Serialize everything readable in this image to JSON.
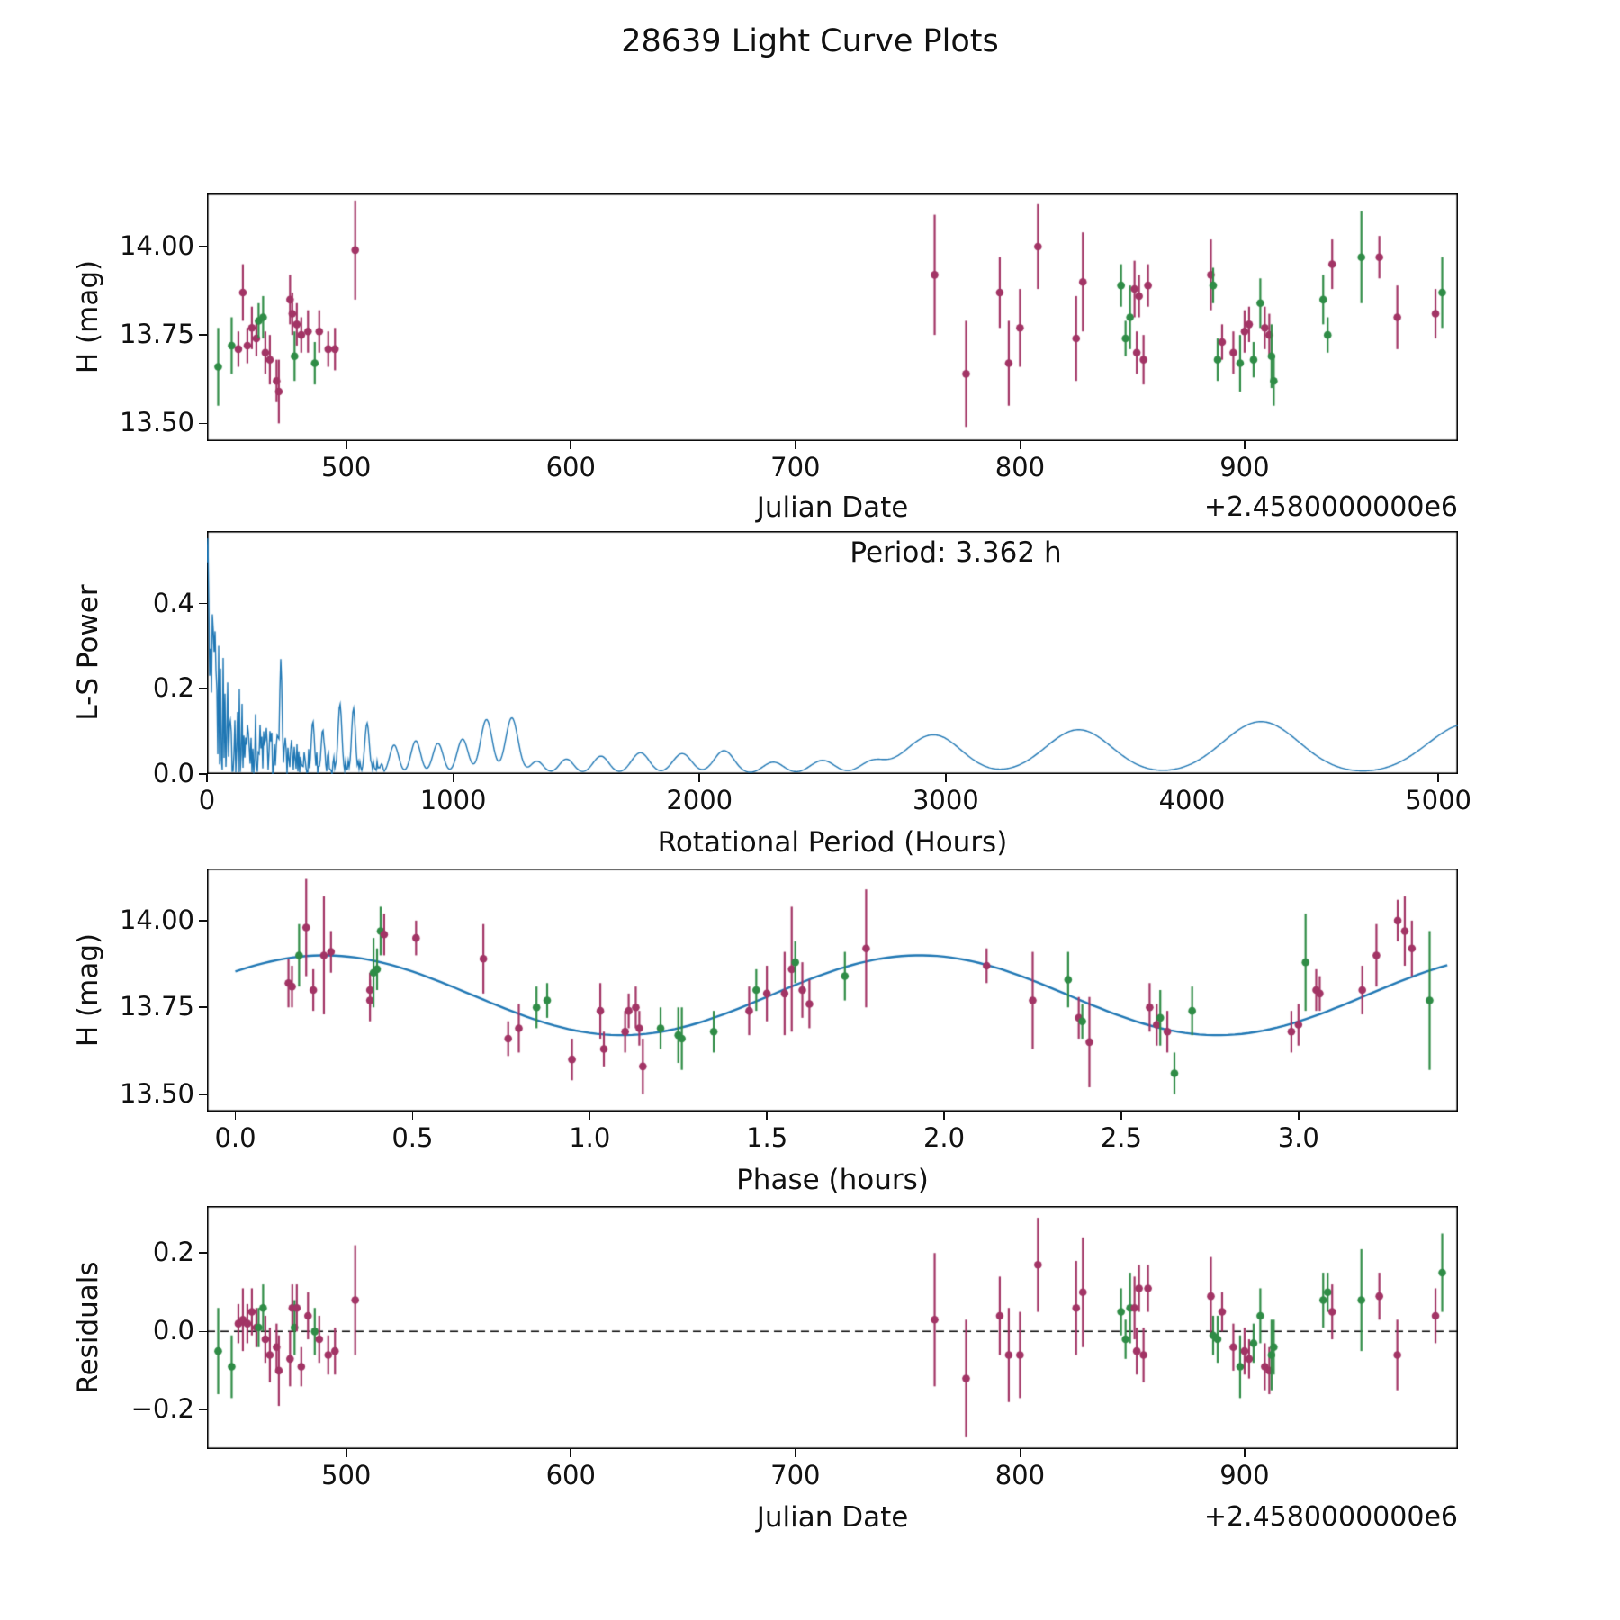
{
  "title": "28639 Light Curve Plots",
  "colors": {
    "series_a": "#a23465",
    "series_b": "#2f8c46",
    "fit_line": "#1f77b4",
    "axes": "#000000"
  },
  "chart_data": [
    {
      "id": "lightcurve",
      "type": "scatter",
      "xlabel": "Julian Date",
      "ylabel": "H (mag)",
      "x_offset_text": "+2.4580000000e6",
      "xlim": [
        438,
        995
      ],
      "ylim": [
        13.45,
        14.15
      ],
      "xtick_vals": [
        500,
        600,
        700,
        800,
        900
      ],
      "xtick_labels": [
        "500",
        "600",
        "700",
        "800",
        "900"
      ],
      "ytick_vals": [
        13.5,
        13.75,
        14.0
      ],
      "ytick_labels": [
        "13.50",
        "13.75",
        "14.00"
      ],
      "points": [
        [
          443,
          13.66,
          0.11,
          "b",
          -0.05
        ],
        [
          449,
          13.72,
          0.08,
          "b",
          -0.09
        ],
        [
          452,
          13.71,
          0.05,
          "a",
          0.02
        ],
        [
          454,
          13.87,
          0.08,
          "a",
          0.03
        ],
        [
          456,
          13.72,
          0.05,
          "a",
          0.02
        ],
        [
          458,
          13.77,
          0.06,
          "a",
          0.05
        ],
        [
          460,
          13.74,
          0.05,
          "a",
          0.01
        ],
        [
          461,
          13.79,
          0.05,
          "b",
          0.01
        ],
        [
          463,
          13.8,
          0.06,
          "b",
          0.06
        ],
        [
          464,
          13.7,
          0.06,
          "a",
          -0.02
        ],
        [
          466,
          13.68,
          0.07,
          "a",
          -0.06
        ],
        [
          469,
          13.62,
          0.06,
          "a",
          -0.04
        ],
        [
          470,
          13.59,
          0.09,
          "a",
          -0.1
        ],
        [
          475,
          13.85,
          0.07,
          "a",
          -0.07
        ],
        [
          476,
          13.81,
          0.06,
          "a",
          0.06
        ],
        [
          477,
          13.69,
          0.07,
          "b",
          0.01
        ],
        [
          478,
          13.78,
          0.06,
          "a",
          0.06
        ],
        [
          480,
          13.75,
          0.05,
          "a",
          -0.09
        ],
        [
          483,
          13.76,
          0.06,
          "a",
          0.04
        ],
        [
          486,
          13.67,
          0.06,
          "b",
          0.0
        ],
        [
          488,
          13.76,
          0.06,
          "a",
          -0.02
        ],
        [
          492,
          13.71,
          0.05,
          "a",
          -0.06
        ],
        [
          495,
          13.71,
          0.06,
          "a",
          -0.05
        ],
        [
          504,
          13.99,
          0.14,
          "a",
          0.08
        ],
        [
          762,
          13.92,
          0.17,
          "a",
          0.03
        ],
        [
          776,
          13.64,
          0.15,
          "a",
          -0.12
        ],
        [
          791,
          13.87,
          0.1,
          "a",
          0.04
        ],
        [
          795,
          13.67,
          0.12,
          "a",
          -0.06
        ],
        [
          800,
          13.77,
          0.11,
          "a",
          -0.06
        ],
        [
          808,
          14.0,
          0.12,
          "a",
          0.17
        ],
        [
          825,
          13.74,
          0.12,
          "a",
          0.06
        ],
        [
          828,
          13.9,
          0.14,
          "a",
          0.1
        ],
        [
          845,
          13.89,
          0.06,
          "b",
          0.05
        ],
        [
          847,
          13.74,
          0.05,
          "b",
          -0.02
        ],
        [
          849,
          13.8,
          0.09,
          "b",
          0.06
        ],
        [
          851,
          13.88,
          0.08,
          "a",
          0.06
        ],
        [
          852,
          13.7,
          0.06,
          "a",
          -0.05
        ],
        [
          853,
          13.86,
          0.06,
          "a",
          0.11
        ],
        [
          855,
          13.68,
          0.07,
          "a",
          -0.06
        ],
        [
          857,
          13.89,
          0.06,
          "a",
          0.11
        ],
        [
          885,
          13.92,
          0.1,
          "a",
          0.09
        ],
        [
          886,
          13.89,
          0.05,
          "b",
          -0.01
        ],
        [
          888,
          13.68,
          0.06,
          "b",
          -0.02
        ],
        [
          890,
          13.73,
          0.05,
          "a",
          0.05
        ],
        [
          895,
          13.7,
          0.06,
          "a",
          -0.04
        ],
        [
          898,
          13.67,
          0.08,
          "b",
          -0.09
        ],
        [
          900,
          13.76,
          0.06,
          "a",
          -0.05
        ],
        [
          902,
          13.78,
          0.05,
          "a",
          -0.07
        ],
        [
          904,
          13.68,
          0.05,
          "b",
          -0.03
        ],
        [
          907,
          13.84,
          0.07,
          "b",
          0.04
        ],
        [
          909,
          13.77,
          0.06,
          "a",
          -0.09
        ],
        [
          911,
          13.75,
          0.06,
          "a",
          -0.1
        ],
        [
          912,
          13.69,
          0.09,
          "b",
          -0.06
        ],
        [
          913,
          13.62,
          0.07,
          "b",
          -0.04
        ],
        [
          935,
          13.85,
          0.07,
          "b",
          0.08
        ],
        [
          937,
          13.75,
          0.05,
          "b",
          0.1
        ],
        [
          939,
          13.95,
          0.07,
          "a",
          0.05
        ],
        [
          952,
          13.97,
          0.13,
          "b",
          0.08
        ],
        [
          960,
          13.97,
          0.06,
          "a",
          0.09
        ],
        [
          968,
          13.8,
          0.09,
          "a",
          -0.06
        ],
        [
          985,
          13.81,
          0.07,
          "a",
          0.04
        ],
        [
          988,
          13.87,
          0.1,
          "b",
          0.15
        ]
      ]
    },
    {
      "id": "periodogram",
      "type": "line",
      "xlabel": "Rotational Period (Hours)",
      "ylabel": "L-S Power",
      "annotation": "Period: 3.362 h",
      "best_period_hours": 3.362,
      "xlim": [
        0,
        5080
      ],
      "ylim": [
        0,
        0.57
      ],
      "xtick_vals": [
        0,
        1000,
        2000,
        3000,
        4000,
        5000
      ],
      "xtick_labels": [
        "0",
        "1000",
        "2000",
        "3000",
        "4000",
        "5000"
      ],
      "ytick_vals": [
        0.0,
        0.2,
        0.4
      ],
      "ytick_labels": [
        "0.0",
        "0.2",
        "0.4"
      ],
      "components": {
        "noise_envelope": [
          0.3,
          115,
          0.13,
          420,
          0.012
        ],
        "spikes": [
          [
            4,
            0.555,
            6
          ],
          [
            300,
            0.27,
            7
          ],
          [
            430,
            0.125,
            9
          ],
          [
            470,
            0.105,
            9
          ],
          [
            540,
            0.165,
            11
          ],
          [
            595,
            0.155,
            11
          ],
          [
            650,
            0.12,
            13
          ]
        ],
        "bumps": [
          [
            760,
            0.068,
            26
          ],
          [
            848,
            0.078,
            28
          ],
          [
            938,
            0.072,
            30
          ],
          [
            1038,
            0.082,
            32
          ],
          [
            1135,
            0.128,
            34
          ],
          [
            1238,
            0.132,
            36
          ],
          [
            1340,
            0.03,
            38
          ],
          [
            1460,
            0.035,
            42
          ],
          [
            1600,
            0.042,
            46
          ],
          [
            1760,
            0.05,
            52
          ],
          [
            1930,
            0.048,
            55
          ],
          [
            2100,
            0.055,
            58
          ],
          [
            2300,
            0.028,
            60
          ],
          [
            2500,
            0.032,
            70
          ],
          [
            2700,
            0.025,
            70
          ],
          [
            2950,
            0.092,
            160
          ],
          [
            3540,
            0.104,
            190
          ],
          [
            4280,
            0.123,
            220
          ],
          [
            5120,
            0.118,
            230
          ]
        ]
      }
    },
    {
      "id": "phase",
      "type": "scatter_with_fit",
      "xlabel": "Phase (hours)",
      "ylabel": "H (mag)",
      "xlim": [
        -0.08,
        3.45
      ],
      "ylim": [
        13.45,
        14.15
      ],
      "xtick_vals": [
        0.0,
        0.5,
        1.0,
        1.5,
        2.0,
        2.5,
        3.0
      ],
      "xtick_labels": [
        "0.0",
        "0.5",
        "1.0",
        "1.5",
        "2.0",
        "2.5",
        "3.0"
      ],
      "ytick_vals": [
        13.5,
        13.75,
        14.0
      ],
      "ytick_labels": [
        "13.50",
        "13.75",
        "14.00"
      ],
      "fit": {
        "mean": 13.785,
        "amplitude": 0.115,
        "period": 1.681,
        "phase_of_max": 0.25,
        "x_start": 0.0,
        "x_end": 3.42
      },
      "points": [
        [
          0.15,
          13.82,
          0.07,
          "a"
        ],
        [
          0.16,
          13.81,
          0.06,
          "a"
        ],
        [
          0.18,
          13.9,
          0.09,
          "b"
        ],
        [
          0.2,
          13.98,
          0.14,
          "a"
        ],
        [
          0.22,
          13.8,
          0.06,
          "a"
        ],
        [
          0.25,
          13.9,
          0.17,
          "a"
        ],
        [
          0.27,
          13.91,
          0.06,
          "a"
        ],
        [
          0.38,
          13.8,
          0.05,
          "a"
        ],
        [
          0.38,
          13.77,
          0.06,
          "a"
        ],
        [
          0.39,
          13.85,
          0.1,
          "b"
        ],
        [
          0.4,
          13.86,
          0.06,
          "b"
        ],
        [
          0.41,
          13.97,
          0.07,
          "b"
        ],
        [
          0.42,
          13.96,
          0.06,
          "a"
        ],
        [
          0.51,
          13.95,
          0.05,
          "a"
        ],
        [
          0.7,
          13.89,
          0.1,
          "a"
        ],
        [
          0.77,
          13.66,
          0.05,
          "a"
        ],
        [
          0.8,
          13.69,
          0.07,
          "a"
        ],
        [
          0.85,
          13.75,
          0.06,
          "b"
        ],
        [
          0.88,
          13.77,
          0.05,
          "b"
        ],
        [
          0.95,
          13.6,
          0.06,
          "a"
        ],
        [
          1.03,
          13.74,
          0.08,
          "a"
        ],
        [
          1.04,
          13.63,
          0.05,
          "a"
        ],
        [
          1.1,
          13.68,
          0.06,
          "a"
        ],
        [
          1.11,
          13.74,
          0.05,
          "a"
        ],
        [
          1.13,
          13.75,
          0.06,
          "a"
        ],
        [
          1.14,
          13.69,
          0.05,
          "a"
        ],
        [
          1.15,
          13.58,
          0.08,
          "a"
        ],
        [
          1.2,
          13.69,
          0.06,
          "b"
        ],
        [
          1.25,
          13.67,
          0.08,
          "b"
        ],
        [
          1.26,
          13.66,
          0.09,
          "b"
        ],
        [
          1.35,
          13.68,
          0.06,
          "b"
        ],
        [
          1.45,
          13.74,
          0.07,
          "a"
        ],
        [
          1.47,
          13.8,
          0.06,
          "b"
        ],
        [
          1.5,
          13.79,
          0.08,
          "a"
        ],
        [
          1.55,
          13.79,
          0.12,
          "a"
        ],
        [
          1.57,
          13.86,
          0.18,
          "a"
        ],
        [
          1.58,
          13.88,
          0.06,
          "b"
        ],
        [
          1.6,
          13.8,
          0.08,
          "a"
        ],
        [
          1.62,
          13.76,
          0.07,
          "a"
        ],
        [
          1.72,
          13.84,
          0.07,
          "b"
        ],
        [
          1.78,
          13.92,
          0.17,
          "a"
        ],
        [
          2.12,
          13.87,
          0.05,
          "a"
        ],
        [
          2.25,
          13.77,
          0.14,
          "a"
        ],
        [
          2.35,
          13.83,
          0.08,
          "b"
        ],
        [
          2.38,
          13.72,
          0.06,
          "a"
        ],
        [
          2.39,
          13.71,
          0.05,
          "b"
        ],
        [
          2.41,
          13.65,
          0.13,
          "a"
        ],
        [
          2.58,
          13.75,
          0.07,
          "a"
        ],
        [
          2.6,
          13.7,
          0.06,
          "a"
        ],
        [
          2.61,
          13.72,
          0.08,
          "b"
        ],
        [
          2.63,
          13.68,
          0.06,
          "a"
        ],
        [
          2.65,
          13.56,
          0.06,
          "b"
        ],
        [
          2.7,
          13.74,
          0.07,
          "b"
        ],
        [
          2.98,
          13.68,
          0.06,
          "a"
        ],
        [
          3.0,
          13.7,
          0.06,
          "a"
        ],
        [
          3.02,
          13.88,
          0.14,
          "b"
        ],
        [
          3.05,
          13.8,
          0.06,
          "a"
        ],
        [
          3.06,
          13.79,
          0.05,
          "a"
        ],
        [
          3.18,
          13.8,
          0.07,
          "a"
        ],
        [
          3.22,
          13.9,
          0.09,
          "a"
        ],
        [
          3.28,
          14.0,
          0.06,
          "a"
        ],
        [
          3.3,
          13.97,
          0.1,
          "a"
        ],
        [
          3.32,
          13.92,
          0.08,
          "a"
        ],
        [
          3.37,
          13.77,
          0.2,
          "b"
        ]
      ]
    },
    {
      "id": "residuals",
      "type": "scatter",
      "xlabel": "Julian Date",
      "ylabel": "Residuals",
      "x_offset_text": "+2.4580000000e6",
      "source": "residual values stored per point in lightcurve points array",
      "zero_line": true,
      "xlim": [
        438,
        995
      ],
      "ylim": [
        -0.3,
        0.32
      ],
      "xtick_vals": [
        500,
        600,
        700,
        800,
        900
      ],
      "xtick_labels": [
        "500",
        "600",
        "700",
        "800",
        "900"
      ],
      "ytick_vals": [
        -0.2,
        0.0,
        0.2
      ],
      "ytick_labels": [
        "−0.2",
        "0.0",
        "0.2"
      ]
    }
  ]
}
